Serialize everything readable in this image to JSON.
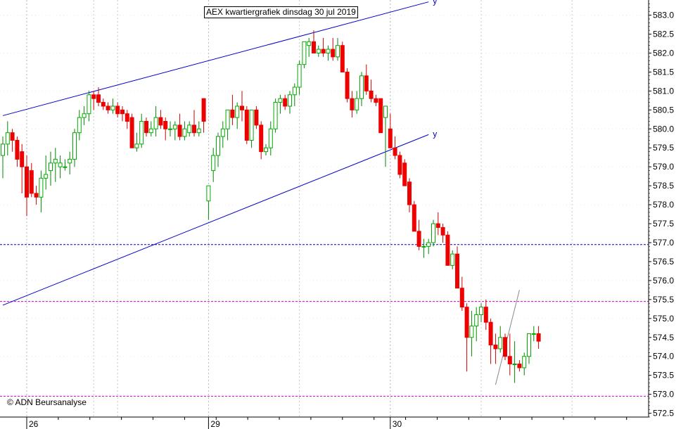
{
  "chart_data": {
    "type": "candlestick",
    "title": "AEX kwartiergrafiek dinsdag 30 jul 2019",
    "credit": "© ADN Beursanalyse",
    "y_range": [
      572.4,
      583.4
    ],
    "y_ticks": [
      583.0,
      582.5,
      582.0,
      581.5,
      581.0,
      580.5,
      580.0,
      579.5,
      579.0,
      578.5,
      578.0,
      577.5,
      577.0,
      576.5,
      576.0,
      575.5,
      575.0,
      574.5,
      574.0,
      573.5,
      573.0,
      572.5
    ],
    "x_day_labels": [
      {
        "label": "26",
        "index": 5
      },
      {
        "label": "29",
        "index": 43
      },
      {
        "label": "30",
        "index": 81
      }
    ],
    "grid": "dotted",
    "up_color": "#00aa00",
    "down_color": "#ee0000",
    "candles": [
      [
        579.3,
        579.8,
        578.7,
        579.6
      ],
      [
        579.6,
        580.2,
        579.3,
        579.9
      ],
      [
        579.9,
        580.0,
        579.4,
        579.7
      ],
      [
        579.7,
        579.8,
        579.0,
        579.2
      ],
      [
        579.4,
        579.6,
        578.3,
        579.0
      ],
      [
        579.0,
        579.3,
        577.7,
        578.2
      ],
      [
        578.9,
        579.1,
        578.2,
        578.3
      ],
      [
        578.3,
        578.5,
        578.0,
        578.2
      ],
      [
        578.2,
        578.9,
        577.8,
        578.7
      ],
      [
        578.7,
        579.3,
        578.4,
        578.8
      ],
      [
        578.9,
        579.4,
        578.5,
        579.1
      ],
      [
        579.1,
        579.5,
        578.6,
        579.2
      ],
      [
        579.0,
        579.3,
        578.7,
        579.1
      ],
      [
        579.0,
        579.2,
        578.9,
        579.0
      ],
      [
        579.1,
        579.4,
        578.8,
        579.2
      ],
      [
        579.2,
        580.0,
        579.0,
        579.9
      ],
      [
        579.9,
        580.5,
        579.7,
        580.3
      ],
      [
        580.3,
        580.6,
        580.1,
        580.4
      ],
      [
        580.4,
        581.0,
        580.2,
        580.9
      ],
      [
        580.9,
        581.0,
        580.5,
        580.8
      ],
      [
        580.9,
        581.1,
        580.6,
        580.7
      ],
      [
        580.7,
        580.8,
        580.5,
        580.6
      ],
      [
        580.6,
        580.7,
        580.4,
        580.5
      ],
      [
        580.5,
        580.8,
        580.4,
        580.6
      ],
      [
        580.6,
        580.7,
        580.3,
        580.4
      ],
      [
        580.5,
        580.6,
        580.2,
        580.4
      ],
      [
        580.4,
        580.5,
        580.0,
        580.2
      ],
      [
        580.3,
        580.4,
        579.5,
        579.5
      ],
      [
        579.5,
        579.9,
        579.4,
        579.6
      ],
      [
        579.6,
        580.4,
        579.5,
        580.2
      ],
      [
        580.2,
        580.3,
        579.8,
        579.9
      ],
      [
        579.9,
        580.2,
        579.8,
        580.0
      ],
      [
        580.0,
        580.6,
        579.8,
        580.3
      ],
      [
        580.3,
        580.5,
        580.0,
        580.1
      ],
      [
        580.2,
        580.3,
        579.7,
        580.0
      ],
      [
        580.0,
        580.2,
        579.8,
        580.0
      ],
      [
        580.0,
        580.2,
        579.7,
        580.1
      ],
      [
        580.1,
        580.4,
        579.7,
        579.8
      ],
      [
        579.8,
        580.2,
        579.7,
        580.0
      ],
      [
        579.9,
        580.2,
        579.8,
        580.1
      ],
      [
        580.1,
        580.5,
        579.8,
        579.9
      ],
      [
        579.9,
        580.2,
        579.8,
        580.0
      ],
      [
        580.8,
        580.8,
        579.9,
        580.2
      ],
      [
        578.1,
        578.5,
        577.6,
        578.5
      ],
      [
        578.9,
        579.5,
        578.6,
        579.3
      ],
      [
        579.3,
        579.9,
        579.0,
        579.8
      ],
      [
        579.8,
        580.2,
        579.5,
        580.0
      ],
      [
        580.0,
        580.5,
        579.7,
        580.5
      ],
      [
        580.5,
        580.9,
        580.1,
        580.3
      ],
      [
        580.3,
        580.7,
        580.0,
        580.6
      ],
      [
        580.6,
        581.0,
        580.2,
        580.5
      ],
      [
        580.5,
        580.6,
        579.6,
        579.7
      ],
      [
        579.7,
        580.5,
        579.5,
        580.5
      ],
      [
        580.5,
        580.6,
        580.0,
        580.1
      ],
      [
        580.1,
        580.2,
        579.2,
        579.4
      ],
      [
        579.4,
        579.6,
        579.3,
        579.5
      ],
      [
        579.5,
        580.2,
        579.3,
        580.0
      ],
      [
        580.0,
        580.8,
        579.9,
        580.7
      ],
      [
        580.7,
        580.9,
        580.4,
        580.8
      ],
      [
        580.8,
        580.9,
        580.5,
        580.6
      ],
      [
        580.6,
        581.0,
        580.4,
        580.9
      ],
      [
        580.9,
        581.2,
        580.6,
        581.1
      ],
      [
        581.1,
        581.8,
        580.9,
        581.7
      ],
      [
        581.7,
        582.3,
        581.6,
        582.3
      ],
      [
        582.2,
        582.4,
        581.9,
        582.3
      ],
      [
        582.3,
        582.6,
        582.0,
        582.0
      ],
      [
        582.0,
        582.2,
        581.9,
        582.1
      ],
      [
        582.1,
        582.4,
        581.9,
        582.0
      ],
      [
        582.0,
        582.2,
        581.8,
        582.1
      ],
      [
        582.1,
        582.4,
        581.8,
        581.9
      ],
      [
        581.9,
        582.4,
        581.8,
        582.2
      ],
      [
        582.2,
        582.3,
        581.5,
        581.5
      ],
      [
        581.5,
        581.6,
        580.7,
        580.8
      ],
      [
        580.8,
        581.0,
        580.3,
        580.5
      ],
      [
        580.5,
        581.0,
        580.4,
        580.8
      ],
      [
        580.8,
        581.5,
        580.6,
        581.4
      ],
      [
        581.4,
        581.7,
        580.9,
        581.0
      ],
      [
        581.0,
        581.3,
        580.7,
        580.8
      ],
      [
        580.8,
        580.9,
        580.6,
        580.7
      ],
      [
        580.8,
        580.8,
        579.9,
        579.9
      ],
      [
        580.3,
        580.6,
        579.0,
        580.6
      ],
      [
        580.0,
        580.4,
        579.5,
        579.5
      ],
      [
        579.5,
        579.8,
        579.2,
        579.3
      ],
      [
        579.3,
        579.4,
        578.7,
        578.8
      ],
      [
        579.1,
        579.2,
        578.5,
        578.5
      ],
      [
        578.6,
        578.7,
        577.8,
        578.0
      ],
      [
        578.0,
        578.1,
        577.4,
        577.3
      ],
      [
        577.3,
        577.6,
        576.8,
        576.9
      ],
      [
        576.9,
        577.1,
        576.6,
        576.9
      ],
      [
        576.9,
        577.1,
        576.7,
        577.0
      ],
      [
        577.0,
        577.6,
        576.9,
        577.5
      ],
      [
        577.5,
        577.8,
        577.2,
        577.4
      ],
      [
        577.4,
        577.5,
        577.0,
        577.2
      ],
      [
        577.2,
        577.3,
        576.4,
        576.4
      ],
      [
        576.4,
        576.8,
        576.3,
        576.7
      ],
      [
        576.7,
        576.9,
        575.8,
        575.8
      ],
      [
        575.8,
        576.1,
        575.2,
        575.3
      ],
      [
        575.3,
        575.4,
        573.6,
        574.5
      ],
      [
        574.5,
        575.2,
        574.0,
        574.8
      ],
      [
        574.8,
        575.3,
        574.4,
        575.1
      ],
      [
        575.1,
        575.4,
        574.9,
        575.3
      ],
      [
        575.3,
        575.5,
        574.7,
        574.9
      ],
      [
        574.9,
        575.0,
        573.8,
        574.3
      ],
      [
        574.3,
        574.6,
        573.8,
        574.2
      ],
      [
        574.2,
        574.8,
        574.1,
        574.5
      ],
      [
        574.5,
        574.6,
        573.9,
        574.0
      ],
      [
        574.0,
        574.6,
        573.5,
        573.8
      ],
      [
        573.8,
        574.4,
        573.3,
        573.8
      ],
      [
        573.8,
        573.9,
        573.6,
        573.7
      ],
      [
        573.7,
        574.1,
        573.5,
        574.0
      ],
      [
        574.0,
        574.6,
        573.8,
        574.6
      ],
      [
        574.6,
        574.8,
        574.4,
        574.6
      ],
      [
        574.6,
        574.8,
        574.2,
        574.4
      ]
    ],
    "horizontal_lines": [
      {
        "value": 576.95,
        "color": "#0000cc"
      },
      {
        "value": 575.45,
        "color": "#cc00cc"
      },
      {
        "value": 572.95,
        "color": "#cc00cc"
      }
    ],
    "trend_lines": [
      {
        "from": [
          0,
          580.35
        ],
        "to": [
          89,
          583.35
        ],
        "label": "y",
        "color": "#0000cc"
      },
      {
        "from": [
          0,
          575.35
        ],
        "to": [
          89,
          579.85
        ],
        "label": "y",
        "color": "#0000cc"
      },
      {
        "from": [
          103,
          573.25
        ],
        "to": [
          108,
          575.75
        ],
        "label": "",
        "color": "#888888"
      }
    ]
  }
}
